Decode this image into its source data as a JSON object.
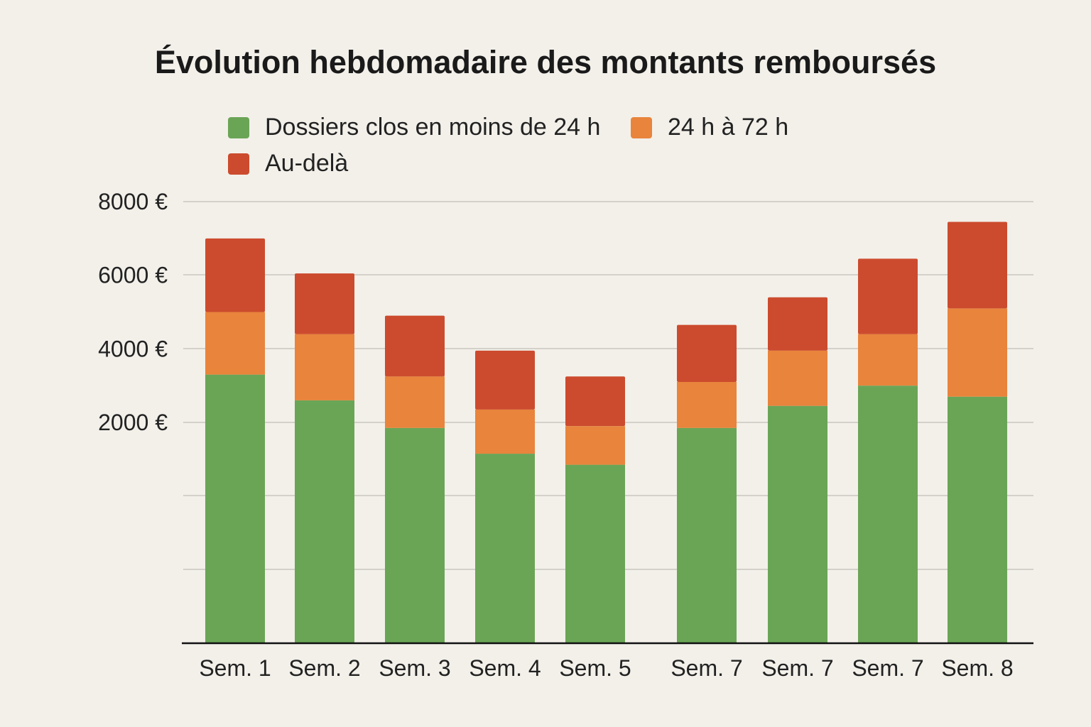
{
  "chart_data": {
    "type": "bar",
    "stacked": true,
    "title": "Évolution hebdomadaire des montants remboursés",
    "xlabel": "",
    "ylabel": "",
    "categories": [
      "Sem. 1",
      "Sem. 2",
      "Sem. 3",
      "Sem. 4",
      "Sem. 5",
      "Sem. 7",
      "Sem. 7",
      "Sem. 7",
      "Sem. 8"
    ],
    "series": [
      {
        "name": "Dossiers clos en moins de 24 h",
        "color": "#6aa556",
        "values": [
          3300,
          2600,
          1850,
          1150,
          850,
          1850,
          2450,
          3000,
          2700
        ]
      },
      {
        "name": "24 h à 72 h",
        "color": "#e8843c",
        "values": [
          1700,
          1800,
          1400,
          1200,
          1050,
          1250,
          1500,
          1400,
          2400
        ]
      },
      {
        "name": "Au-delà",
        "color": "#cc4b2e",
        "values": [
          2000,
          1650,
          1650,
          1600,
          1350,
          1550,
          1450,
          2050,
          2350
        ]
      }
    ],
    "yticks": [
      {
        "value": 8000,
        "label": "8000 €"
      },
      {
        "value": 6000,
        "label": "6000 €"
      },
      {
        "value": 4000,
        "label": "4000 €"
      },
      {
        "value": 2000,
        "label": "2000 €"
      }
    ],
    "ylim": [
      0,
      8000
    ],
    "grid": true,
    "legend_position": "top-left"
  }
}
